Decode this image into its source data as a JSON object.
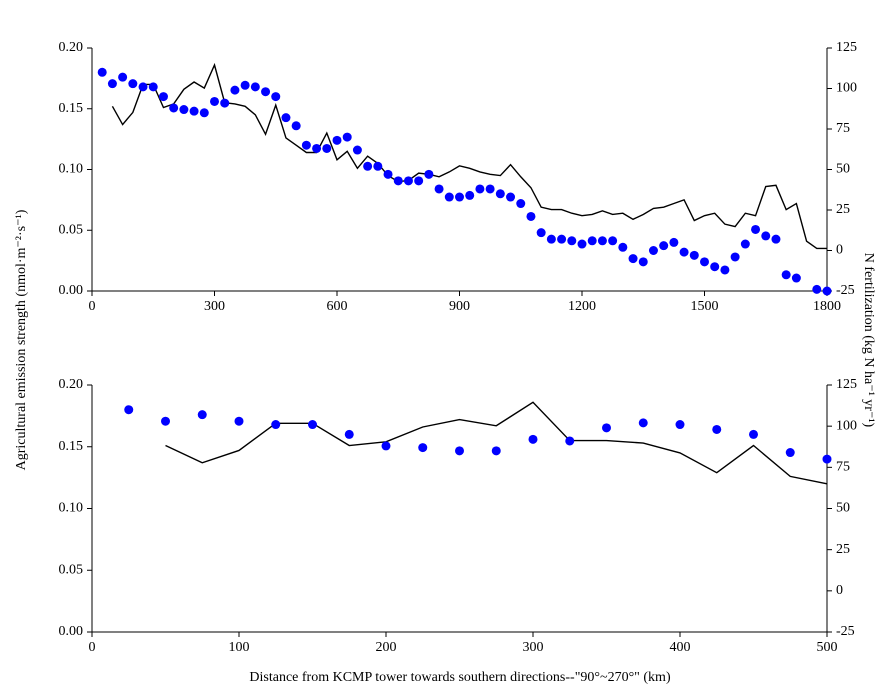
{
  "chart_data": [
    {
      "type": "combo",
      "ylabel": "Agricultural emission strength (nmol·m⁻²·s⁻¹)",
      "y2label": "N fertilization (kg N ha⁻¹ yr⁻¹)",
      "xlim": [
        0,
        1800
      ],
      "xticks": [
        0,
        300,
        600,
        900,
        1200,
        1500,
        1800
      ],
      "ylim": [
        0,
        0.2
      ],
      "yticks": [
        {
          "value": 0,
          "label": "0.00"
        },
        0.05,
        {
          "value": 0.1,
          "label": "0.10"
        },
        0.15,
        {
          "value": 0.2,
          "label": "0.20"
        }
      ],
      "y2lim": [
        -25,
        125
      ],
      "y2ticks": [
        -25,
        0,
        25,
        50,
        75,
        100,
        125
      ],
      "series": [
        {
          "kind": "line",
          "color": "#000000",
          "x": [
            50,
            75,
            100,
            125,
            150,
            175,
            200,
            225,
            250,
            275,
            300,
            325,
            350,
            375,
            400,
            425,
            450,
            475,
            500,
            525,
            550,
            575,
            600,
            625,
            650,
            675,
            700,
            725,
            750,
            775,
            800,
            825,
            850,
            875,
            900,
            925,
            950,
            975,
            1000,
            1025,
            1050,
            1075,
            1100,
            1125,
            1150,
            1175,
            1200,
            1225,
            1250,
            1275,
            1300,
            1325,
            1350,
            1375,
            1400,
            1425,
            1450,
            1475,
            1500,
            1525,
            1550,
            1575,
            1600,
            1625,
            1650,
            1675,
            1700,
            1725,
            1750,
            1775,
            1800
          ],
          "values": [
            0.152,
            0.137,
            0.147,
            0.17,
            0.17,
            0.151,
            0.154,
            0.166,
            0.172,
            0.167,
            0.186,
            0.155,
            0.154,
            0.152,
            0.145,
            0.129,
            0.153,
            0.126,
            0.12,
            0.114,
            0.114,
            0.13,
            0.108,
            0.115,
            0.101,
            0.111,
            0.105,
            0.095,
            0.09,
            0.091,
            0.097,
            0.096,
            0.094,
            0.098,
            0.103,
            0.101,
            0.098,
            0.096,
            0.095,
            0.104,
            0.094,
            0.085,
            0.069,
            0.067,
            0.067,
            0.064,
            0.062,
            0.063,
            0.066,
            0.063,
            0.064,
            0.059,
            0.063,
            0.068,
            0.069,
            0.072,
            0.075,
            0.058,
            0.062,
            0.064,
            0.055,
            0.053,
            0.064,
            0.062,
            0.086,
            0.087,
            0.067,
            0.072,
            0.041,
            0.035,
            0.035
          ]
        },
        {
          "kind": "scatter",
          "color": "#0000ff",
          "axis": "y2",
          "x": [
            25,
            50,
            75,
            100,
            125,
            150,
            175,
            200,
            225,
            250,
            275,
            300,
            325,
            350,
            375,
            400,
            425,
            450,
            475,
            500,
            525,
            550,
            575,
            600,
            625,
            650,
            675,
            700,
            725,
            750,
            775,
            800,
            825,
            850,
            875,
            900,
            925,
            950,
            975,
            1000,
            1025,
            1050,
            1075,
            1100,
            1125,
            1150,
            1175,
            1200,
            1225,
            1250,
            1275,
            1300,
            1325,
            1350,
            1375,
            1400,
            1425,
            1450,
            1475,
            1500,
            1525,
            1550,
            1575,
            1600,
            1625,
            1650,
            1675,
            1700,
            1725,
            1775,
            1800
          ],
          "values": [
            110,
            103,
            107,
            103,
            101,
            101,
            95,
            88,
            87,
            86,
            85,
            92,
            91,
            99,
            102,
            101,
            98,
            95,
            82,
            77,
            65,
            63,
            63,
            68,
            70,
            62,
            52,
            52,
            47,
            43,
            43,
            43,
            47,
            38,
            33,
            33,
            34,
            38,
            38,
            35,
            33,
            29,
            21,
            11,
            7,
            7,
            6,
            4,
            6,
            6,
            6,
            2,
            -5,
            -7,
            0,
            3,
            5,
            -1,
            -3,
            -7,
            -10,
            -12,
            -4,
            4,
            13,
            9,
            7,
            -15,
            -17,
            -24,
            -25
          ]
        }
      ]
    },
    {
      "type": "combo",
      "xlabel": "Distance from KCMP tower towards southern directions--\"90°~270°\" (km)",
      "xlim": [
        0,
        500
      ],
      "xticks": [
        0,
        100,
        200,
        300,
        400,
        500
      ],
      "ylim": [
        0,
        0.2
      ],
      "yticks": [
        {
          "value": 0,
          "label": "0.00"
        },
        0.05,
        {
          "value": 0.1,
          "label": "0.10"
        },
        0.15,
        {
          "value": 0.2,
          "label": "0.20"
        }
      ],
      "y2lim": [
        -25,
        125
      ],
      "y2ticks": [
        -25,
        0,
        25,
        50,
        75,
        100,
        125
      ],
      "series": [
        {
          "kind": "line",
          "color": "#000000",
          "x": [
            50,
            75,
            100,
            125,
            150,
            175,
            200,
            225,
            250,
            275,
            300,
            325,
            350,
            375,
            400,
            425,
            450,
            475,
            500
          ],
          "values": [
            0.151,
            0.137,
            0.147,
            0.169,
            0.169,
            0.151,
            0.154,
            0.166,
            0.172,
            0.167,
            0.186,
            0.155,
            0.155,
            0.153,
            0.145,
            0.129,
            0.151,
            0.126,
            0.12
          ]
        },
        {
          "kind": "scatter",
          "color": "#0000ff",
          "axis": "y2",
          "x": [
            25,
            50,
            75,
            100,
            125,
            150,
            175,
            200,
            225,
            250,
            275,
            300,
            325,
            350,
            375,
            400,
            425,
            450,
            475,
            500
          ],
          "values": [
            110,
            103,
            107,
            103,
            101,
            101,
            95,
            88,
            87,
            85,
            85,
            92,
            91,
            99,
            102,
            101,
            98,
            95,
            84,
            80
          ]
        }
      ]
    }
  ]
}
